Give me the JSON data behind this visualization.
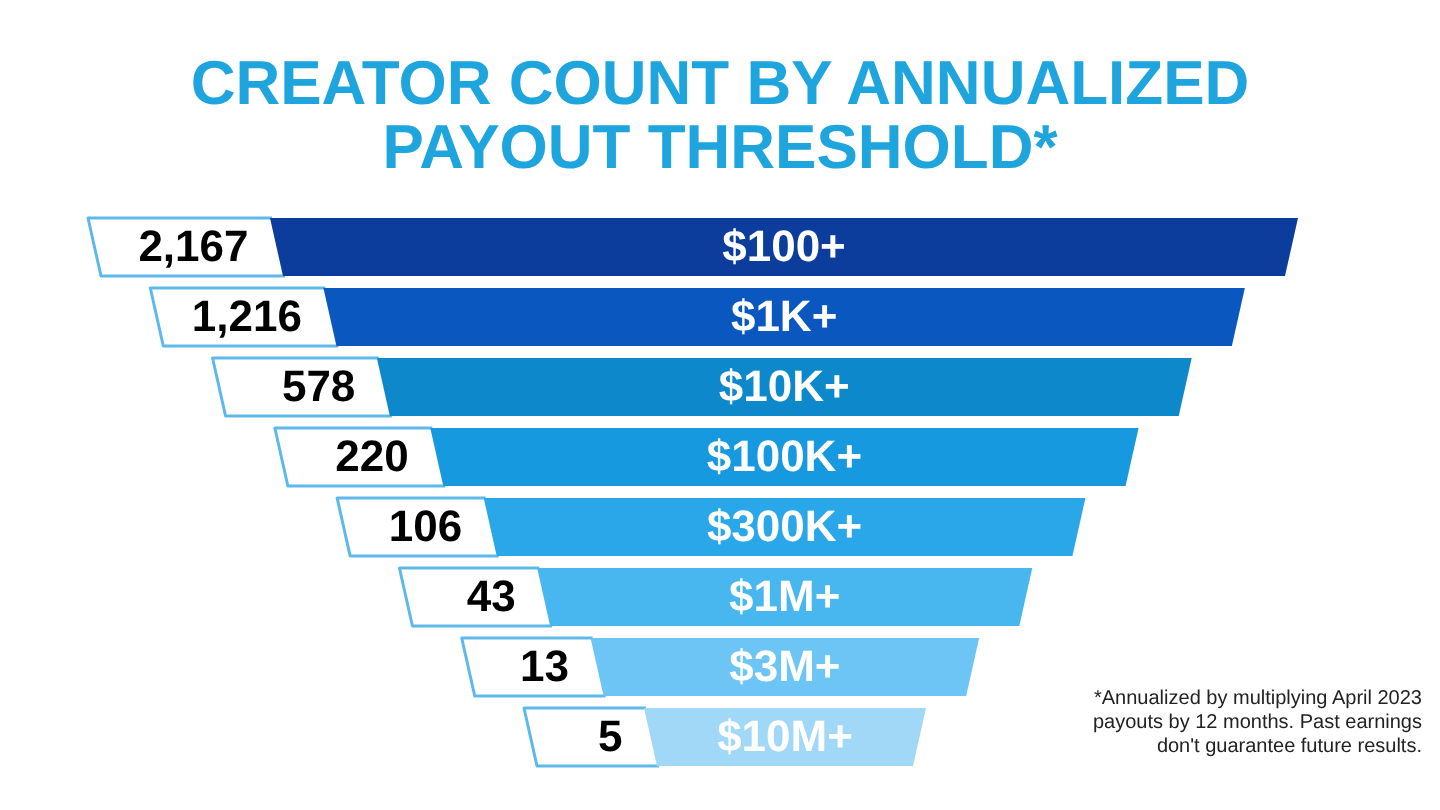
{
  "chart_data": {
    "type": "other",
    "title": "CREATOR COUNT BY ANNUALIZED PAYOUT THRESHOLD*",
    "categories": [
      "$100+",
      "$1K+",
      "$10K+",
      "$100K+",
      "$300K+",
      "$1M+",
      "$3M+",
      "$10M+"
    ],
    "values": [
      2167,
      1216,
      578,
      220,
      106,
      43,
      13,
      5
    ],
    "value_labels": [
      "2,167",
      "1,216",
      "578",
      "220",
      "106",
      "43",
      "13",
      "5"
    ],
    "colors": [
      "#0c3c9c",
      "#0a57c0",
      "#0c88cb",
      "#1699de",
      "#2aa7e9",
      "#48b6ef",
      "#6cc5f4",
      "#a2d8f7"
    ],
    "annotations": [
      "*Annualized by multiplying April 2023 payouts by 12 months. Past earnings don't guarantee future results."
    ]
  }
}
